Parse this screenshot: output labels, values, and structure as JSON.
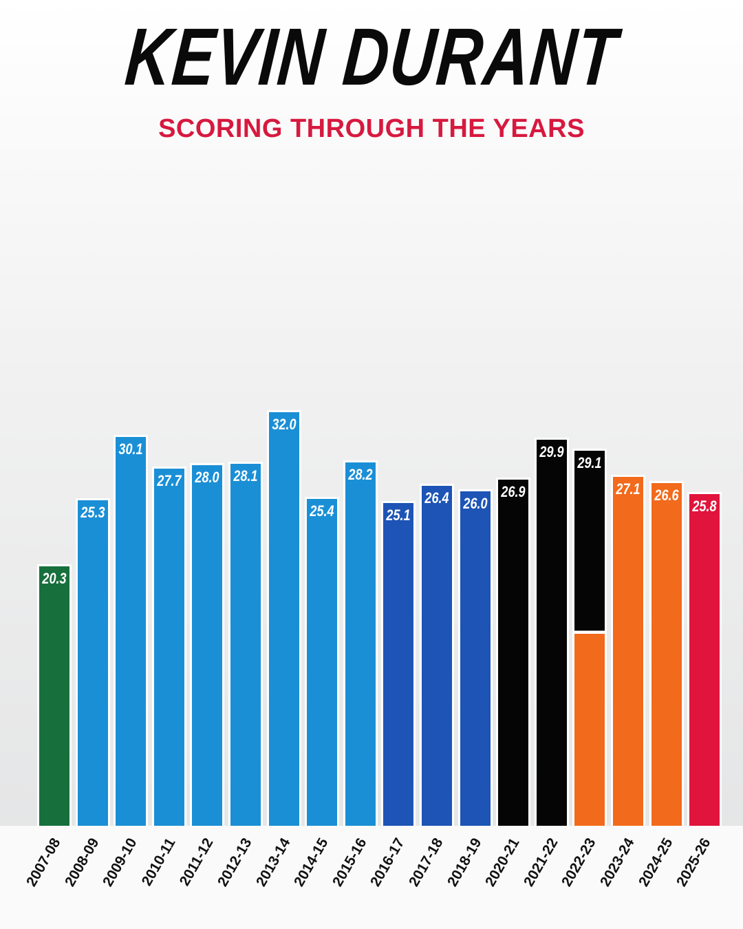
{
  "header": {
    "title": "KEVIN DURANT",
    "subtitle": "SCORING THROUGH THE YEARS"
  },
  "chart_data": {
    "type": "bar",
    "title": "KEVIN DURANT",
    "subtitle": "SCORING THROUGH THE YEARS",
    "xlabel": "",
    "ylabel": "",
    "categories": [
      "2007-08",
      "2008-09",
      "2009-10",
      "2010-11",
      "2011-12",
      "2012-13",
      "2013-14",
      "2014-15",
      "2015-16",
      "2016-17",
      "2017-18",
      "2018-19",
      "2020-21",
      "2021-22",
      "2022-23",
      "2023-24",
      "2024-25",
      "2025-26"
    ],
    "values": [
      20.3,
      25.3,
      30.1,
      27.7,
      28.0,
      28.1,
      32.0,
      25.4,
      28.2,
      25.1,
      26.4,
      26.0,
      26.9,
      29.9,
      29.1,
      27.1,
      26.6,
      25.8
    ],
    "value_labels": [
      "20.3",
      "25.3",
      "30.1",
      "27.7",
      "28.0",
      "28.1",
      "32.0",
      "25.4",
      "28.2",
      "25.1",
      "26.4",
      "26.0",
      "26.9",
      "29.9",
      "29.1",
      "27.1",
      "26.6",
      "25.8"
    ],
    "bar_colors": [
      "#17703c",
      "#1a8fd6",
      "#1a8fd6",
      "#1a8fd6",
      "#1a8fd6",
      "#1a8fd6",
      "#1a8fd6",
      "#1a8fd6",
      "#1a8fd6",
      "#1d54b5",
      "#1d54b5",
      "#1d54b5",
      "#050505",
      "#050505",
      [
        "#050505",
        "#f26a1b"
      ],
      "#f26a1b",
      "#f26a1b",
      "#e0143c"
    ],
    "grid": false,
    "legend": "none"
  }
}
